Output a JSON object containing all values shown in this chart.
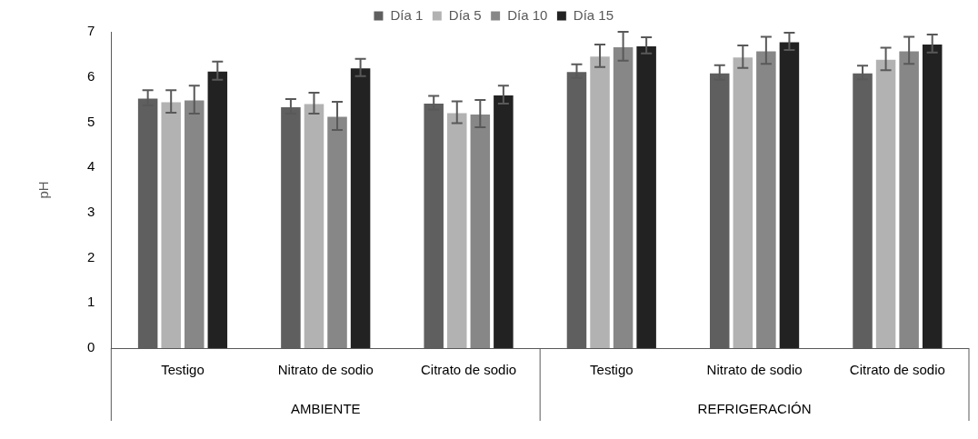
{
  "chart_data": {
    "type": "bar",
    "ylabel": "pH",
    "categories": [
      "Testigo",
      "Nitrato de sodio",
      "Citrato de sodio",
      "Testigo",
      "Nitrato de sodio",
      "Citrato de sodio"
    ],
    "annotations": [
      "AMBIENTE",
      "REFRIGERACIÓN"
    ],
    "series": [
      {
        "name": "Día 1",
        "color": "#5f5f5f",
        "values": [
          5.54,
          5.35,
          5.43,
          6.13,
          6.1,
          6.1
        ],
        "errors": [
          0.17,
          0.16,
          0.15,
          0.15,
          0.16,
          0.15
        ]
      },
      {
        "name": "Día 5",
        "color": "#b2b2b2",
        "values": [
          5.46,
          5.42,
          5.22,
          6.47,
          6.45,
          6.4
        ],
        "errors": [
          0.25,
          0.23,
          0.24,
          0.25,
          0.25,
          0.25
        ]
      },
      {
        "name": "Día 10",
        "color": "#878787",
        "values": [
          5.5,
          5.14,
          5.19,
          6.68,
          6.59,
          6.59
        ],
        "errors": [
          0.31,
          0.31,
          0.3,
          0.32,
          0.3,
          0.3
        ]
      },
      {
        "name": "Día 15",
        "color": "#222222",
        "values": [
          6.14,
          6.21,
          5.61,
          6.7,
          6.79,
          6.74
        ],
        "errors": [
          0.2,
          0.19,
          0.2,
          0.18,
          0.19,
          0.2
        ]
      }
    ],
    "ylim": [
      0,
      7
    ],
    "yticks": [
      0,
      1,
      2,
      3,
      4,
      5,
      6,
      7
    ],
    "grid": false,
    "legend": "top"
  }
}
